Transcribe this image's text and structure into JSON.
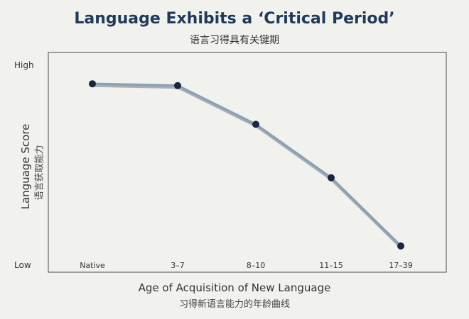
{
  "chart_data": {
    "type": "line",
    "title": "Language Exhibits a ‘Critical Period’",
    "subtitle": "语言习得具有关键期",
    "xlabel": "Age of Acquisition of New Language",
    "xlabel_cn": "习得新语言能力的年龄曲线",
    "ylabel": "Language Score",
    "ylabel_cn": "语言获取能力",
    "categories": [
      "Native",
      "3–7",
      "8–10",
      "11–15",
      "17–39"
    ],
    "values": [
      93,
      92,
      71,
      42,
      5
    ],
    "ylim": [
      0,
      100
    ],
    "y_tick_labels": [
      {
        "label": "High",
        "value": 100
      },
      {
        "label": "Low",
        "value": 0
      }
    ],
    "grid": false,
    "line_color": "#8ea0b4",
    "point_color": "#1b2440"
  }
}
